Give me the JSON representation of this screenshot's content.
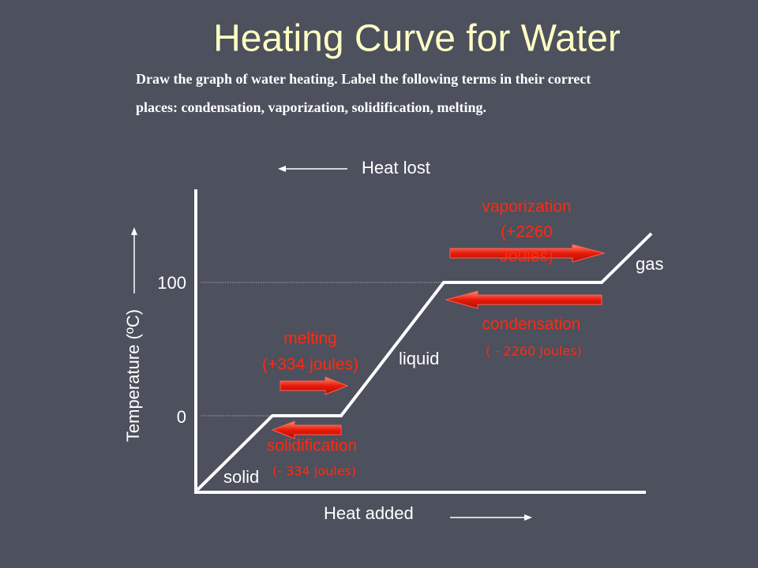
{
  "title": "Heating Curve for Water",
  "instructions": [
    "Draw the graph of water heating. Label the following terms in their correct",
    "places:  condensation, vaporization, solidification, melting."
  ],
  "heat_lost": "Heat lost",
  "heat_added": "Heat added",
  "y_axis_label": "Temperature (ºC)",
  "y_ticks": [
    "100",
    "0"
  ],
  "phases": [
    "solid",
    "liquid",
    "gas"
  ],
  "changes": [
    {
      "name": "vaporization",
      "energy": [
        "(+2260",
        "Joules)"
      ]
    },
    {
      "name": "condensation",
      "energy": [
        "( - 2260 Joules)"
      ]
    },
    {
      "name": "melting",
      "energy": [
        "(+334 joules)"
      ]
    },
    {
      "name": "solidification",
      "energy": [
        "(- 334 joules)"
      ]
    }
  ]
}
